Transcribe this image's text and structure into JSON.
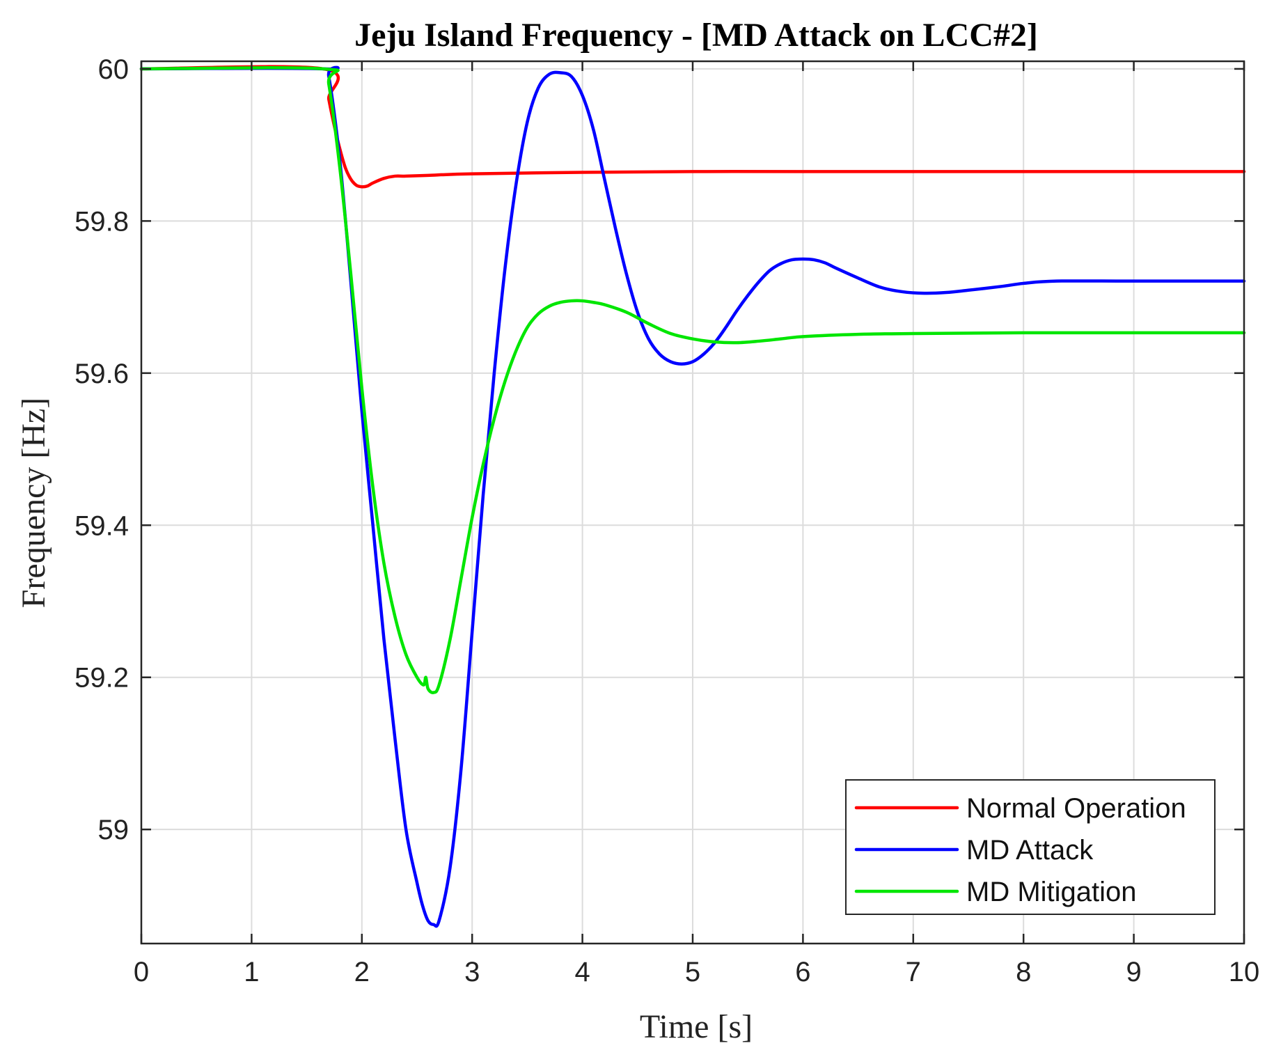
{
  "chart_data": {
    "type": "line",
    "title": "Jeju Island Frequency - [MD Attack on LCC#2]",
    "xlabel": "Time [s]",
    "ylabel": "Frequency [Hz]",
    "xlim": [
      0,
      10
    ],
    "ylim": [
      58.85,
      60.01
    ],
    "xticks": [
      0,
      1,
      2,
      3,
      4,
      5,
      6,
      7,
      8,
      9,
      10
    ],
    "yticks": [
      59,
      59.2,
      59.4,
      59.6,
      59.8,
      60
    ],
    "xtick_labels": [
      "0",
      "1",
      "2",
      "3",
      "4",
      "5",
      "6",
      "7",
      "8",
      "9",
      "10"
    ],
    "ytick_labels": [
      "59",
      "59.2",
      "59.4",
      "59.6",
      "59.8",
      "60"
    ],
    "grid": true,
    "legend_position": "bottom-right",
    "series": [
      {
        "name": "Normal Operation",
        "color": "#ff0000",
        "x": [
          0,
          1.65,
          1.7,
          1.75,
          1.8,
          1.85,
          1.9,
          1.95,
          2.0,
          2.05,
          2.1,
          2.2,
          2.3,
          2.4,
          2.6,
          3.0,
          4.0,
          5.0,
          6.0,
          7.0,
          8.0,
          9.0,
          10.0
        ],
        "y": [
          60.0,
          60.0,
          59.96,
          59.925,
          59.895,
          59.87,
          59.855,
          59.847,
          59.845,
          59.846,
          59.85,
          59.856,
          59.859,
          59.859,
          59.86,
          59.862,
          59.864,
          59.865,
          59.865,
          59.865,
          59.865,
          59.865,
          59.865
        ]
      },
      {
        "name": "MD Attack",
        "color": "#0000ff",
        "x": [
          0,
          1.65,
          1.7,
          1.8,
          1.9,
          2.0,
          2.1,
          2.2,
          2.3,
          2.4,
          2.5,
          2.55,
          2.6,
          2.65,
          2.7,
          2.8,
          2.9,
          3.0,
          3.1,
          3.2,
          3.3,
          3.4,
          3.5,
          3.6,
          3.7,
          3.8,
          3.9,
          4.0,
          4.1,
          4.2,
          4.3,
          4.4,
          4.5,
          4.6,
          4.7,
          4.8,
          4.9,
          5.0,
          5.1,
          5.2,
          5.3,
          5.4,
          5.5,
          5.6,
          5.7,
          5.8,
          5.9,
          6.0,
          6.1,
          6.2,
          6.3,
          6.5,
          6.7,
          6.9,
          7.1,
          7.3,
          7.5,
          7.8,
          8.0,
          8.3,
          9.0,
          10.0
        ],
        "y": [
          60.0,
          60.0,
          59.99,
          59.88,
          59.72,
          59.55,
          59.4,
          59.25,
          59.12,
          59.0,
          58.93,
          58.9,
          58.88,
          58.875,
          58.88,
          58.95,
          59.08,
          59.26,
          59.44,
          59.6,
          59.74,
          59.85,
          59.93,
          59.975,
          59.993,
          59.995,
          59.99,
          59.965,
          59.92,
          59.855,
          59.79,
          59.73,
          59.68,
          59.645,
          59.625,
          59.615,
          59.612,
          59.615,
          59.625,
          59.64,
          59.66,
          59.682,
          59.702,
          59.72,
          59.735,
          59.744,
          59.749,
          59.75,
          59.749,
          59.745,
          59.738,
          59.725,
          59.713,
          59.707,
          59.705,
          59.706,
          59.709,
          59.714,
          59.718,
          59.721,
          59.721,
          59.721
        ]
      },
      {
        "name": "MD Mitigation",
        "color": "#00e600",
        "x": [
          0,
          1.65,
          1.7,
          1.8,
          1.9,
          2.0,
          2.1,
          2.2,
          2.3,
          2.4,
          2.5,
          2.56,
          2.58,
          2.6,
          2.65,
          2.7,
          2.8,
          2.9,
          3.0,
          3.1,
          3.2,
          3.3,
          3.4,
          3.5,
          3.6,
          3.7,
          3.8,
          3.9,
          4.0,
          4.1,
          4.2,
          4.4,
          4.6,
          4.8,
          5.0,
          5.2,
          5.4,
          5.6,
          5.8,
          6.0,
          6.5,
          7.0,
          8.0,
          9.0,
          10.0
        ],
        "y": [
          60.0,
          60.0,
          59.98,
          59.87,
          59.73,
          59.58,
          59.45,
          59.35,
          59.28,
          59.23,
          59.2,
          59.19,
          59.2,
          59.185,
          59.18,
          59.19,
          59.25,
          59.33,
          59.41,
          59.48,
          59.54,
          59.59,
          59.63,
          59.66,
          59.678,
          59.688,
          59.693,
          59.695,
          59.695,
          59.693,
          59.69,
          59.68,
          59.665,
          59.652,
          59.645,
          59.641,
          59.64,
          59.642,
          59.645,
          59.648,
          59.651,
          59.652,
          59.653,
          59.653,
          59.653
        ]
      }
    ]
  }
}
